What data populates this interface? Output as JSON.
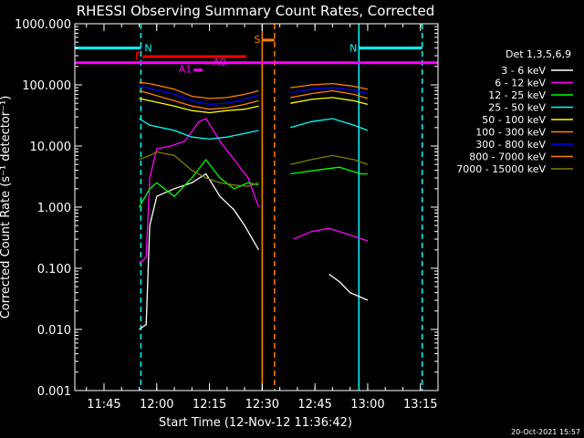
{
  "chart_data": {
    "type": "line",
    "title": "RHESSI Observing Summary Count Rates, Corrected",
    "xlabel": "Start Time (12-Nov-12 11:36:42)",
    "ylabel": "Corrected Count Rate (s⁻¹ detector⁻¹)",
    "yscale": "log",
    "ylim": [
      0.001,
      1000
    ],
    "xlim": [
      "11:36:42",
      "13:20:00"
    ],
    "x_ticks": [
      "11:45",
      "12:00",
      "12:15",
      "12:30",
      "12:45",
      "13:00",
      "13:15"
    ],
    "y_ticks": [
      "0.001",
      "0.010",
      "0.100",
      "1.000",
      "10.000",
      "100.000",
      "1000.000"
    ],
    "legend_title": "Det 1,3,5,6,9",
    "legend_position": "right",
    "footer_date": "20-Oct-2021 15:57",
    "series": [
      {
        "name": "3 - 6 keV",
        "color": "#ffffff",
        "x": [
          "11:55",
          "11:57",
          "11:58",
          "12:00",
          "12:05",
          "12:10",
          "12:14",
          "12:18",
          "12:22",
          "12:25",
          "12:28",
          "12:29",
          "12:49",
          "12:52",
          "12:55",
          "13:00"
        ],
        "y": [
          0.01,
          0.012,
          0.5,
          1.5,
          2.0,
          2.5,
          3.5,
          1.5,
          0.9,
          0.5,
          0.25,
          0.2,
          0.08,
          0.06,
          0.04,
          0.03
        ]
      },
      {
        "name": "6 - 12 keV",
        "color": "#ff00ff",
        "x": [
          "11:55",
          "11:57",
          "11:58",
          "12:00",
          "12:04",
          "12:08",
          "12:12",
          "12:14",
          "12:18",
          "12:22",
          "12:26",
          "12:29",
          "12:39",
          "12:44",
          "12:49",
          "12:55",
          "13:00"
        ],
        "y": [
          0.12,
          0.15,
          3,
          9,
          10,
          12,
          25,
          28,
          12,
          6,
          3,
          1,
          0.3,
          0.4,
          0.45,
          0.35,
          0.28
        ]
      },
      {
        "name": "12 - 25 keV",
        "color": "#00ff00",
        "x": [
          "11:55",
          "11:58",
          "12:00",
          "12:05",
          "12:10",
          "12:14",
          "12:18",
          "12:22",
          "12:26",
          "12:29",
          "12:38",
          "12:45",
          "12:52",
          "12:58",
          "13:00"
        ],
        "y": [
          1.0,
          2.0,
          2.5,
          1.5,
          3,
          6,
          3,
          2,
          2.5,
          2.3,
          3.5,
          4,
          4.5,
          3.5,
          3.5
        ]
      },
      {
        "name": "25 - 50 keV",
        "color": "#00ffff",
        "x": [
          "11:55",
          "11:58",
          "12:05",
          "12:10",
          "12:15",
          "12:20",
          "12:25",
          "12:29",
          "12:38",
          "12:44",
          "12:50",
          "12:56",
          "13:00"
        ],
        "y": [
          28,
          22,
          18,
          14,
          13,
          14,
          16,
          18,
          20,
          25,
          28,
          22,
          18
        ]
      },
      {
        "name": "50 - 100 keV",
        "color": "#ffff00",
        "x": [
          "11:55",
          "11:58",
          "12:05",
          "12:10",
          "12:15",
          "12:20",
          "12:25",
          "12:29",
          "12:38",
          "12:44",
          "12:50",
          "12:56",
          "13:00"
        ],
        "y": [
          60,
          55,
          45,
          38,
          35,
          38,
          40,
          45,
          50,
          58,
          62,
          55,
          48
        ]
      },
      {
        "name": "100 - 300 keV",
        "color": "#ff8000",
        "x": [
          "11:55",
          "11:58",
          "12:05",
          "12:10",
          "12:15",
          "12:20",
          "12:25",
          "12:29",
          "12:38",
          "12:44",
          "12:50",
          "12:56",
          "13:00"
        ],
        "y": [
          80,
          72,
          55,
          45,
          40,
          42,
          48,
          55,
          62,
          72,
          80,
          70,
          60
        ]
      },
      {
        "name": "300 - 800 keV",
        "color": "#0000ff",
        "x": [
          "11:55",
          "11:58",
          "12:05",
          "12:10",
          "12:15",
          "12:20",
          "12:25",
          "12:29",
          "12:38",
          "12:44",
          "12:50",
          "12:56",
          "13:00"
        ],
        "y": [
          95,
          88,
          70,
          55,
          48,
          50,
          58,
          68,
          75,
          85,
          90,
          82,
          72
        ]
      },
      {
        "name": "800 - 7000 keV",
        "color": "#ff8000",
        "x": [
          "11:55",
          "11:58",
          "12:05",
          "12:10",
          "12:15",
          "12:20",
          "12:25",
          "12:29",
          "12:38",
          "12:44",
          "12:50",
          "12:56",
          "13:00"
        ],
        "y": [
          110,
          105,
          85,
          65,
          60,
          62,
          70,
          80,
          90,
          100,
          105,
          95,
          85
        ]
      },
      {
        "name": "7000 - 15000 keV",
        "color": "#808000",
        "x": [
          "11:55",
          "11:58",
          "12:00",
          "12:05",
          "12:10",
          "12:14",
          "12:18",
          "12:22",
          "12:26",
          "12:29",
          "12:38",
          "12:44",
          "12:50",
          "12:56",
          "13:00"
        ],
        "y": [
          6,
          7,
          8,
          7,
          4,
          3,
          2.5,
          2.3,
          2.2,
          2.5,
          5,
          6,
          7,
          6,
          5
        ]
      }
    ],
    "bars": [
      {
        "label": "N",
        "color": "#00ffff",
        "start": "11:36:42",
        "end": "11:55:30",
        "level": 400
      },
      {
        "label": "N",
        "color": "#00ffff",
        "start": "12:57:30",
        "end": "13:15:30",
        "level": 400
      },
      {
        "label": "S",
        "color": "#ff8000",
        "start": "12:30:00",
        "end": "12:33:30",
        "level": 540
      },
      {
        "label": "F",
        "color": "#ff0000",
        "start": "11:56:00",
        "end": "12:25:30",
        "level": 290
      },
      {
        "label": "A0",
        "color": "#ff00ff",
        "start": "11:36:42",
        "end": "13:20:00",
        "level": 230
      },
      {
        "label": "A1",
        "color": "#ff00ff",
        "start": "12:10:30",
        "end": "12:13:00",
        "level": 175
      }
    ],
    "vlines": [
      {
        "x": "11:55:30",
        "color": "#00ffff",
        "style": "dashed"
      },
      {
        "x": "12:57:30",
        "color": "#00ffff",
        "style": "solid"
      },
      {
        "x": "13:15:30",
        "color": "#00ffff",
        "style": "dashed"
      },
      {
        "x": "12:30:00",
        "color": "#ff8000",
        "style": "solid"
      },
      {
        "x": "12:33:30",
        "color": "#ff8000",
        "style": "dashed"
      }
    ]
  }
}
